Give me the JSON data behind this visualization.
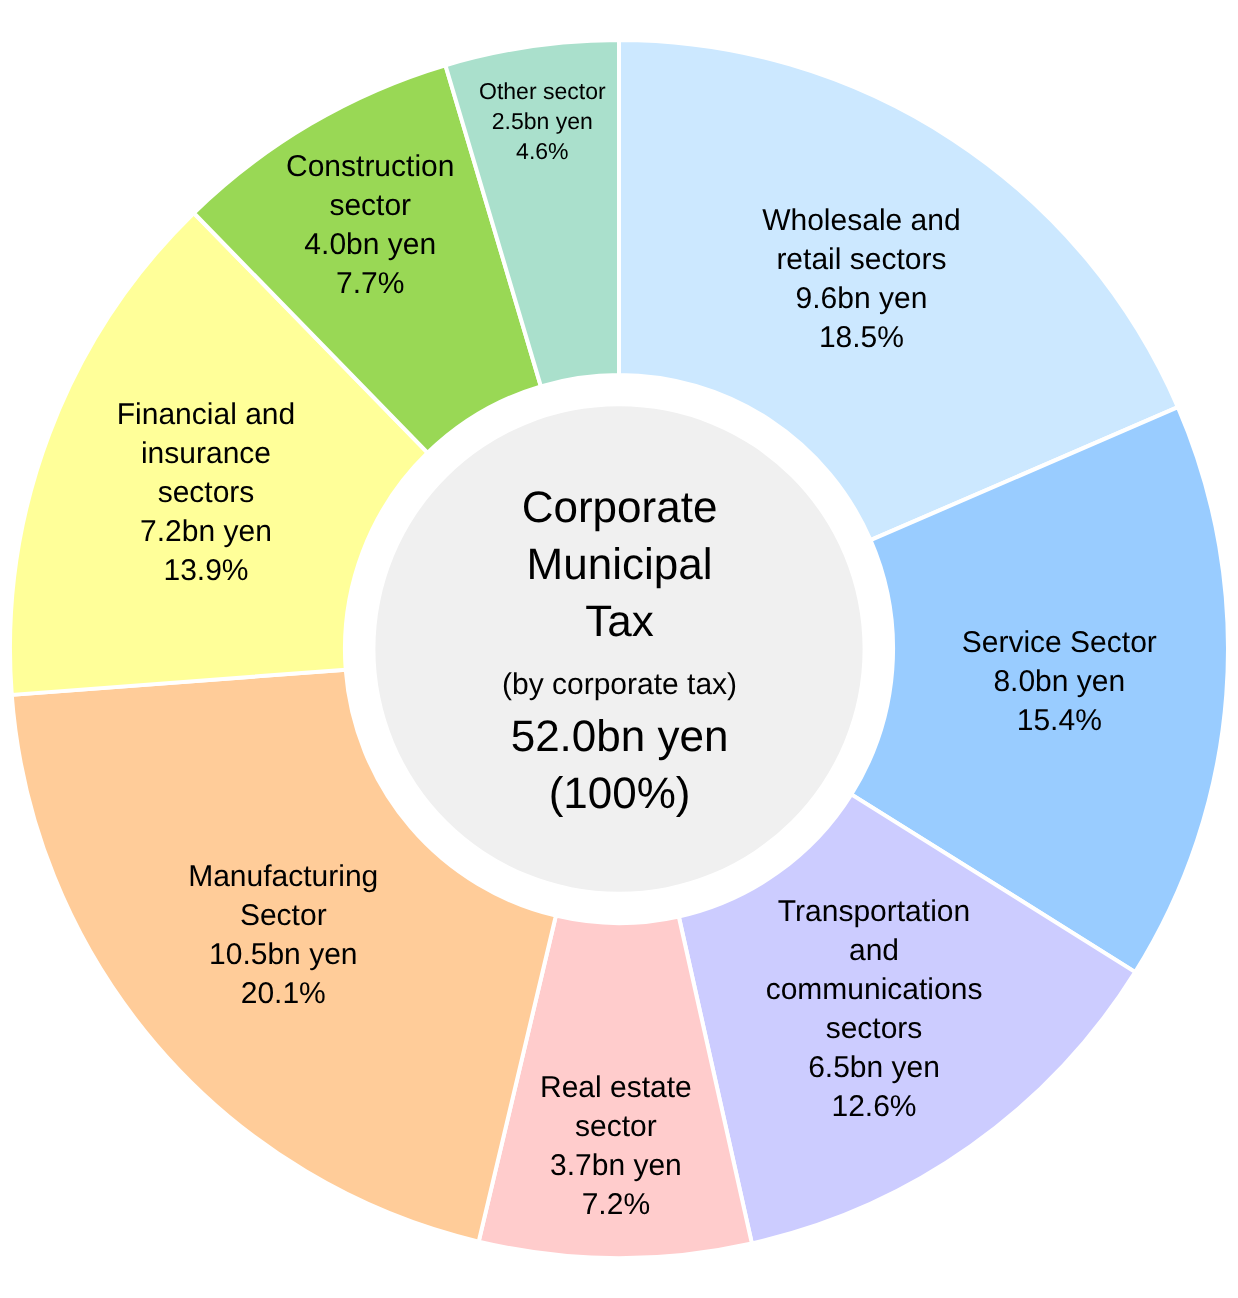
{
  "chart_data": {
    "type": "donut",
    "title": "Corporate Municipal Tax",
    "subtitle": "(by corporate tax)",
    "annotations": [
      "52.0bn yen",
      "(100%)"
    ],
    "categories": [
      "Wholesale and retail sectors",
      "Service Sector",
      "Transportation and communications sectors",
      "Real estate sector",
      "Manufacturing Sector",
      "Financial and insurance sectors",
      "Construction sector",
      "Other sector"
    ],
    "values": [
      18.5,
      15.4,
      12.6,
      7.2,
      20.1,
      13.9,
      7.7,
      4.6
    ],
    "value_labels": [
      "9.6bn yen\n18.5%",
      "8.0bn yen\n15.4%",
      "6.5bn yen\n12.6%",
      "3.7bn yen\n7.2%",
      "10.5bn yen\n20.1%",
      "7.2bn yen\n13.9%",
      "4.0bn yen\n7.7%",
      "2.5bn yen\n4.6%"
    ],
    "colors": [
      "#cce8ff",
      "#99ccff",
      "#ccccff",
      "#ffcccc",
      "#ffcc99",
      "#ffff99",
      "#99d855",
      "#aae0cc"
    ],
    "legend": false
  }
}
